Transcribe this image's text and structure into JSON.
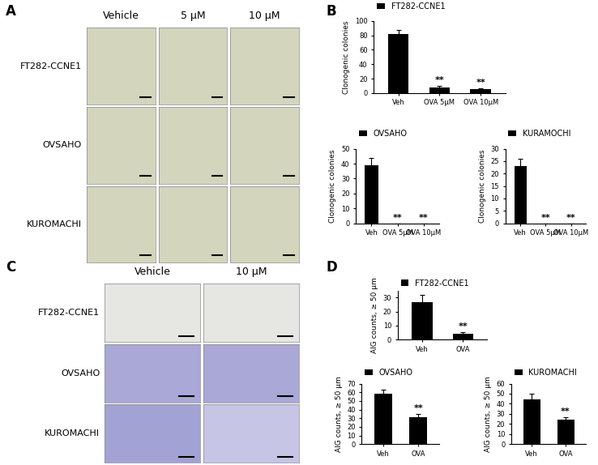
{
  "chart_data": [
    {
      "type": "bar",
      "ylabel": "Clonogenic colonies",
      "categories": [
        "Veh",
        "OVA 5μM",
        "OVA 10μM"
      ],
      "series": [
        {
          "name": "FT282-CCNE1",
          "color": "#000000",
          "values": [
            82,
            8,
            5
          ],
          "errors": [
            5,
            2,
            2
          ]
        }
      ],
      "annotations": [
        null,
        "**",
        "**"
      ],
      "ylim": [
        0,
        100
      ],
      "yticks": [
        0,
        20,
        40,
        60,
        80,
        100
      ],
      "legend": "upper left"
    },
    {
      "type": "bar",
      "ylabel": "Clonogenic colonies",
      "categories": [
        "Veh",
        "OVA 5μM",
        "OVA 10μM"
      ],
      "series": [
        {
          "name": "OVSAHO",
          "color": "#000000",
          "values": [
            39,
            0,
            0
          ],
          "errors": [
            5,
            0,
            0
          ]
        }
      ],
      "annotations": [
        null,
        "**",
        "**"
      ],
      "ylim": [
        0,
        50
      ],
      "yticks": [
        0,
        10,
        20,
        30,
        40,
        50
      ],
      "legend": "upper left"
    },
    {
      "type": "bar",
      "ylabel": "Clonogenic colonies",
      "categories": [
        "Veh",
        "OVA 5μM",
        "OVA 10μM"
      ],
      "series": [
        {
          "name": "KURAMOCHI",
          "color": "#000000",
          "values": [
            23,
            0,
            0
          ],
          "errors": [
            3,
            0,
            0
          ]
        }
      ],
      "annotations": [
        null,
        "**",
        "**"
      ],
      "ylim": [
        0,
        30
      ],
      "yticks": [
        0,
        5,
        10,
        15,
        20,
        25,
        30
      ],
      "legend": "upper left"
    },
    {
      "type": "bar",
      "ylabel": "AIG counts, ≥ 50 μm",
      "categories": [
        "Veh",
        "OVA"
      ],
      "series": [
        {
          "name": "FT282-CCNE1",
          "color": "#000000",
          "values": [
            27,
            4
          ],
          "errors": [
            5,
            1.5
          ]
        }
      ],
      "annotations": [
        null,
        "**"
      ],
      "ylim": [
        0,
        35
      ],
      "yticks": [
        0,
        10,
        20,
        30
      ],
      "legend": "upper left"
    },
    {
      "type": "bar",
      "ylabel": "AIG counts, ≥ 50 μm",
      "categories": [
        "Veh",
        "OVA"
      ],
      "series": [
        {
          "name": "OVSAHO",
          "color": "#000000",
          "values": [
            58,
            31
          ],
          "errors": [
            5,
            4
          ]
        }
      ],
      "annotations": [
        null,
        "**"
      ],
      "ylim": [
        0,
        70
      ],
      "yticks": [
        0,
        10,
        20,
        30,
        40,
        50,
        60,
        70
      ],
      "legend": "upper left"
    },
    {
      "type": "bar",
      "ylabel": "AIG counts, ≥ 50 μm",
      "categories": [
        "Veh",
        "OVA"
      ],
      "series": [
        {
          "name": "KUROMACHI",
          "color": "#000000",
          "values": [
            44,
            24
          ],
          "errors": [
            6,
            3
          ]
        }
      ],
      "annotations": [
        null,
        "**"
      ],
      "ylim": [
        0,
        60
      ],
      "yticks": [
        0,
        10,
        20,
        30,
        40,
        50,
        60
      ],
      "legend": "upper left"
    }
  ],
  "panel_labels": [
    "A",
    "B",
    "C",
    "D"
  ],
  "image_panels": [
    {
      "columns": [
        "Vehicle",
        "5 μM",
        "10 μM"
      ],
      "rows": [
        "FT282-CCNE1",
        "OVSAHO",
        "KUROMACHI"
      ]
    },
    {
      "columns": [
        "Vehicle",
        "10 μM"
      ],
      "rows": [
        "FT282-CCNE1",
        "OVSAHO",
        "KUROMACHI"
      ]
    }
  ]
}
